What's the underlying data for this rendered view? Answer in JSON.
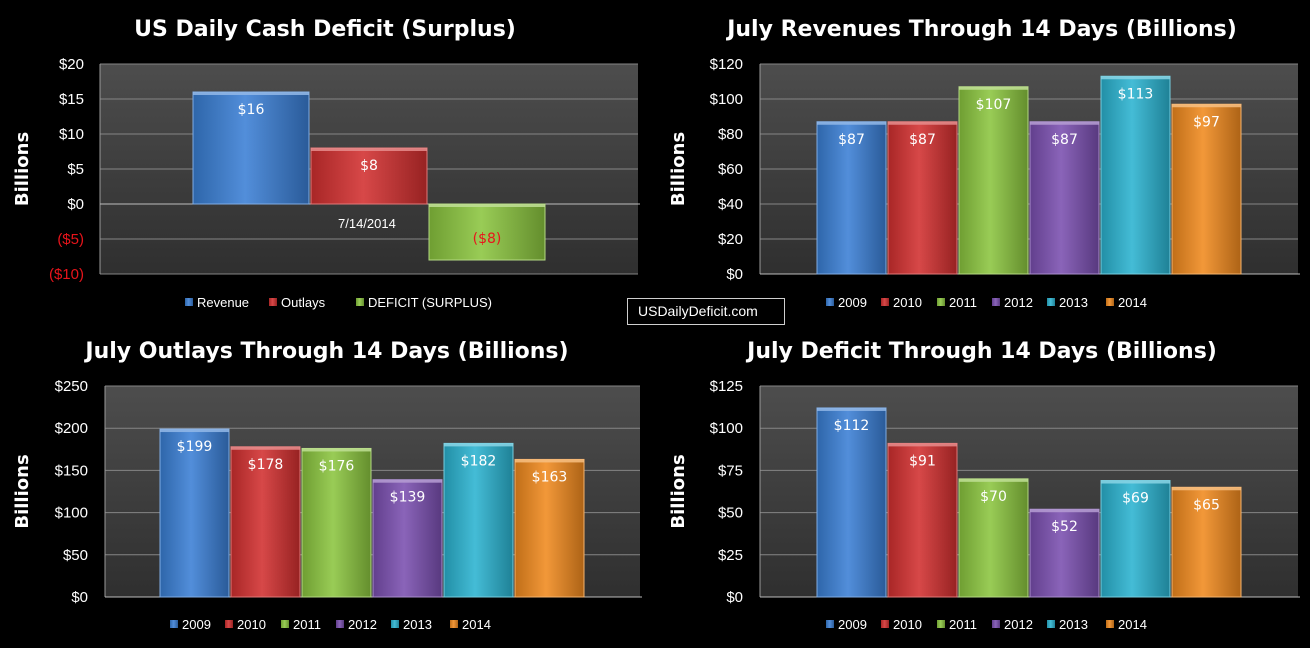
{
  "chart_data": [
    {
      "type": "bar",
      "title": "US Daily Cash Deficit (Surplus)",
      "ylabel": "Billions",
      "ylim": [
        -10,
        20
      ],
      "yticks": [
        "$20",
        "$15",
        "$10",
        "$5",
        "$0",
        "($5)",
        "($10)"
      ],
      "annotation": "7/14/2014",
      "grid": true,
      "legend_position": "bottom",
      "series": [
        {
          "name": "Revenue",
          "values": [
            16
          ],
          "label": "$16",
          "color": "#3a7fd5"
        },
        {
          "name": "Outlays",
          "values": [
            8
          ],
          "label": "$8",
          "color": "#d22f2f"
        },
        {
          "name": "DEFICIT (SURPLUS)",
          "values": [
            -8
          ],
          "label": "($8)",
          "color": "#8bc53f"
        }
      ]
    },
    {
      "type": "bar",
      "title": "July Revenues Through 14 Days (Billions)",
      "ylabel": "Billions",
      "ylim": [
        0,
        120
      ],
      "yticks": [
        "$120",
        "$100",
        "$80",
        "$60",
        "$40",
        "$20",
        "$0"
      ],
      "grid": true,
      "legend_position": "bottom",
      "categories": [
        "2009",
        "2010",
        "2011",
        "2012",
        "2013",
        "2014"
      ],
      "values": [
        87,
        87,
        107,
        87,
        113,
        97
      ],
      "labels": [
        "$87",
        "$87",
        "$107",
        "$87",
        "$113",
        "$97"
      ]
    },
    {
      "type": "bar",
      "title": "July Outlays Through 14 Days (Billions)",
      "ylabel": "Billions",
      "ylim": [
        0,
        250
      ],
      "yticks": [
        "$250",
        "$200",
        "$150",
        "$100",
        "$50",
        "$0"
      ],
      "grid": true,
      "legend_position": "bottom",
      "categories": [
        "2009",
        "2010",
        "2011",
        "2012",
        "2013",
        "2014"
      ],
      "values": [
        199,
        178,
        176,
        139,
        182,
        163
      ],
      "labels": [
        "$199",
        "$178",
        "$176",
        "$139",
        "$182",
        "$163"
      ]
    },
    {
      "type": "bar",
      "title": "July Deficit Through 14 Days (Billions)",
      "ylabel": "Billions",
      "ylim": [
        0,
        125
      ],
      "yticks": [
        "$125",
        "$100",
        "$75",
        "$50",
        "$25",
        "$0"
      ],
      "grid": true,
      "legend_position": "bottom",
      "categories": [
        "2009",
        "2010",
        "2011",
        "2012",
        "2013",
        "2014"
      ],
      "values": [
        112,
        91,
        70,
        52,
        69,
        65
      ],
      "labels": [
        "$112",
        "$91",
        "$70",
        "$52",
        "$69",
        "$65"
      ]
    }
  ],
  "year_colors": [
    "#3a7fd5",
    "#d22f2f",
    "#8bc53f",
    "#7a4fb0",
    "#2bb3d0",
    "#f08a1e"
  ],
  "source_label": "USDailyDeficit.com"
}
